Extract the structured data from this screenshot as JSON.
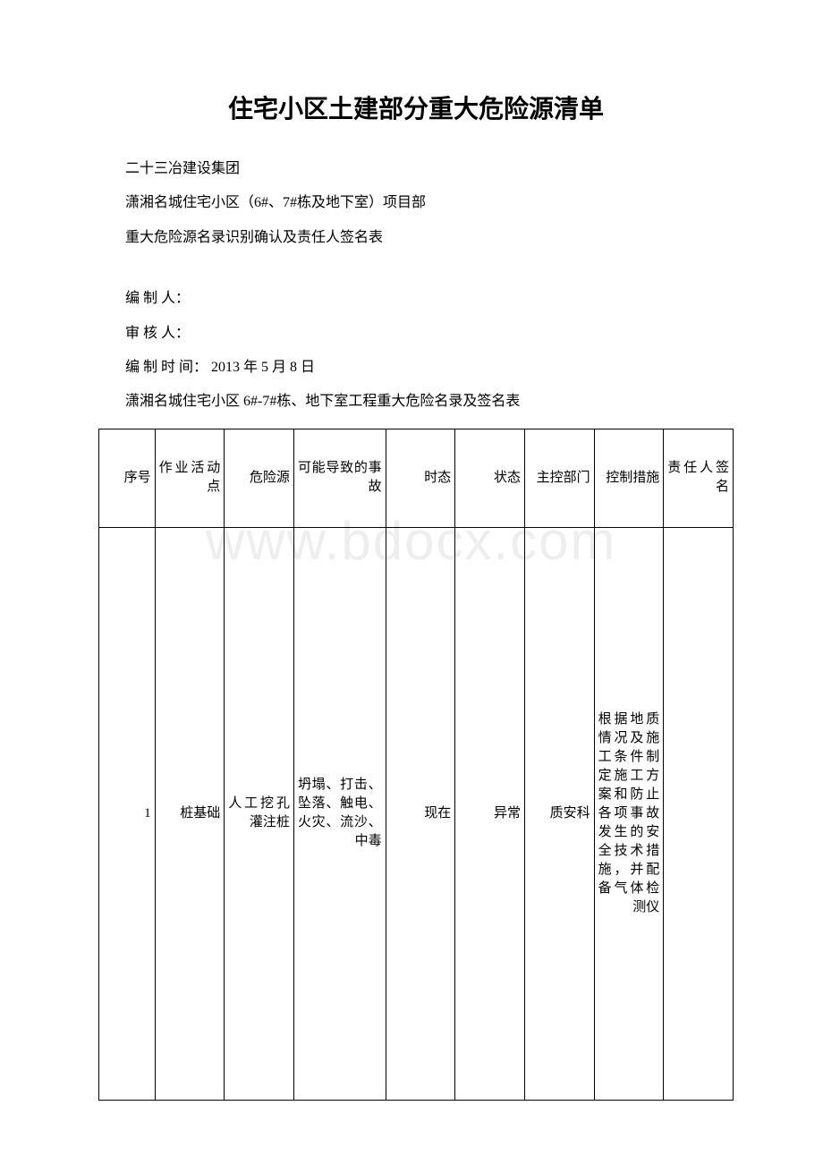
{
  "title": "住宅小区土建部分重大危险源清单",
  "lines": {
    "org": "二十三冶建设集团",
    "project": "潇湘名城住宅小区（6#、7#栋及地下室）项目部",
    "table_name": "重大危险源名录识别确认及责任人签名表",
    "editor": "编 制 人：",
    "reviewer": "审 核 人：",
    "edit_time": "编 制 时 间：  2013 年 5 月 8 日",
    "subtitle": "潇湘名城住宅小区 6#-7#栋、地下室工程重大危险名录及签名表"
  },
  "watermark": "www.bdocx.com",
  "table": {
    "columns": [
      "序号",
      "作业活动点",
      "危险源",
      "可能导致的事故",
      "时态",
      "状态",
      "主控部门",
      "控制措施",
      "责任人签名"
    ],
    "rows": [
      {
        "c1": "1",
        "c2": "桩基础",
        "c3": "人工挖孔灌注桩",
        "c4": "坍塌、打击、坠落、触电、火灾、流沙、中毒",
        "c5": "现在",
        "c6": "异常",
        "c7": "质安科",
        "c8": "根据地质情况及施工条件制定施工方案和防止各项事故发生的安全技术措施，并配备气体检测仪",
        "c9": ""
      }
    ],
    "border_color": "#000000",
    "font_size": 15
  },
  "colors": {
    "text": "#000000",
    "background": "#ffffff",
    "watermark": "#eeeeee"
  }
}
